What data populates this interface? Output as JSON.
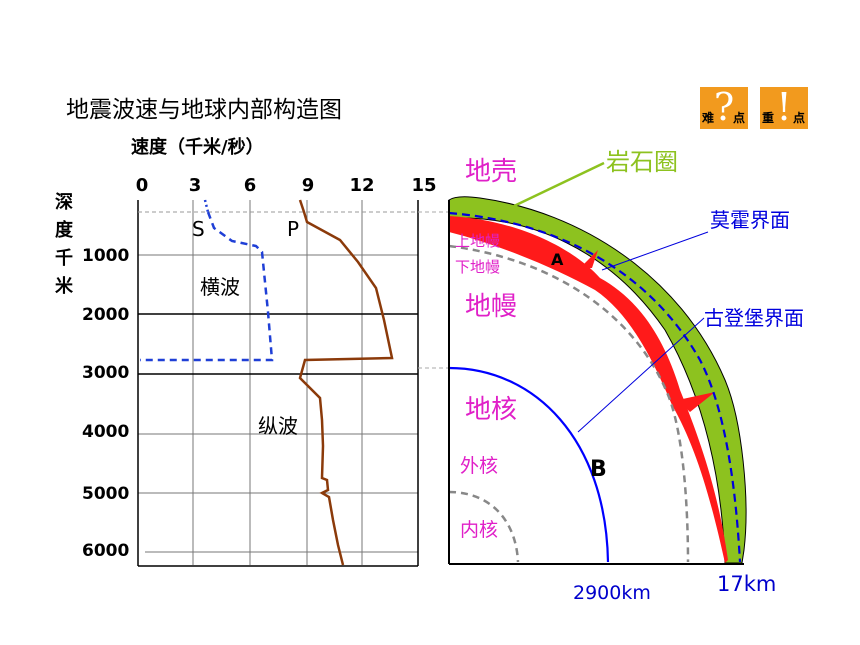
{
  "title": "地震波速与地球内部构造图",
  "speed_label": "速度（千米/秒）",
  "depth_axis_label": [
    "深",
    "度",
    "千",
    "米"
  ],
  "speed_ticks": [
    "0",
    "3",
    "6",
    "9",
    "12",
    "15"
  ],
  "depth_ticks": [
    "1000",
    "2000",
    "3000",
    "4000",
    "5000",
    "6000"
  ],
  "wave_labels": {
    "s": "S",
    "p": "P",
    "transverse": "横波",
    "longitudinal": "纵波"
  },
  "layers": {
    "crust": "地壳",
    "lithosphere": "岩石圈",
    "upper_mantle": "上地幔",
    "lower_mantle": "下地幔",
    "mantle": "地幔",
    "core": "地核",
    "outer_core": "外核",
    "inner_core": "内核"
  },
  "boundaries": {
    "moho": "莫霍界面",
    "gutenberg": "古登堡界面",
    "a": "A",
    "b": "B"
  },
  "depth_marks": {
    "gutenberg_depth": "2900km",
    "crust_depth": "17km"
  },
  "icons": [
    {
      "glyph": "?",
      "s1": "难",
      "s2": "点"
    },
    {
      "glyph": "!",
      "s1": "重",
      "s2": "点"
    }
  ],
  "colors": {
    "s_wave": "#1f3fd6",
    "p_wave": "#8b3a0a",
    "layer_label": "#e020c8",
    "lithosphere": "#8dc21f",
    "crust_band": "#ff0000",
    "boundary_blue": "#0000dd",
    "gutenberg_line": "#0000ff"
  }
}
